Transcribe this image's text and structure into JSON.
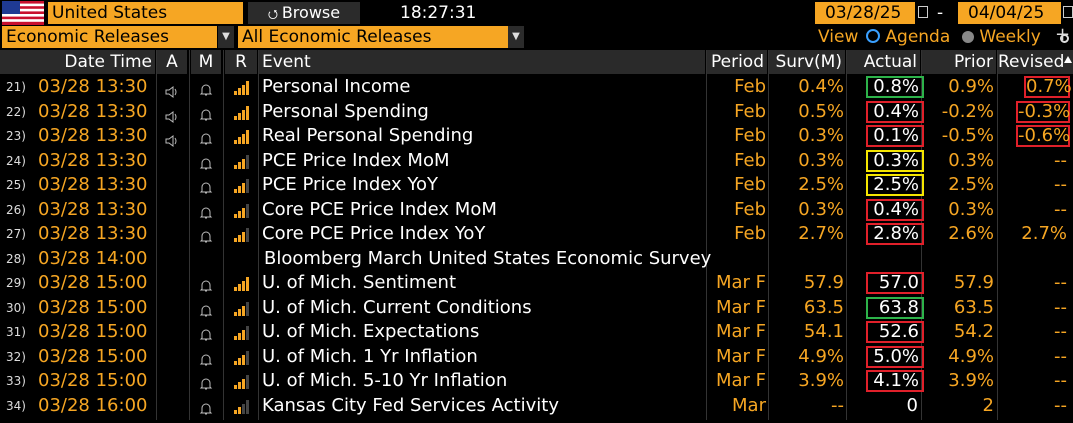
{
  "toolbar": {
    "country": "United States",
    "browse_label": "Browse",
    "time": "18:27:31",
    "date_from": "03/28/25",
    "date_to": "04/04/25",
    "date_separator": "-",
    "category": "Economic Releases",
    "filter": "All Economic Releases",
    "view_label": "View",
    "agenda_label": "Agenda",
    "weekly_label": "Weekly"
  },
  "columns": {
    "date_time": "Date Time",
    "a": "A",
    "m": "M",
    "r": "R",
    "event": "Event",
    "period": "Period",
    "survey": "Surv(M)",
    "actual": "Actual",
    "prior": "Prior",
    "revised": "Revised"
  },
  "colors": {
    "orange": "#f6a623",
    "green": "#2db34a",
    "red": "#e0202a",
    "yellow": "#f5e600"
  },
  "rows": [
    {
      "num": "21)",
      "dt": "03/28 13:30",
      "a": true,
      "m": true,
      "r": 4,
      "event": "Personal Income",
      "period": "Feb",
      "surv": "0.4%",
      "actual": "0.8%",
      "actual_box": "green",
      "prior": "0.9%",
      "revised": "0.7%",
      "revised_box": "red"
    },
    {
      "num": "22)",
      "dt": "03/28 13:30",
      "a": true,
      "m": true,
      "r": 4,
      "event": "Personal Spending",
      "period": "Feb",
      "surv": "0.5%",
      "actual": "0.4%",
      "actual_box": "red",
      "prior": "-0.2%",
      "revised": "-0.3%",
      "revised_box": "red"
    },
    {
      "num": "23)",
      "dt": "03/28 13:30",
      "a": true,
      "m": true,
      "r": 4,
      "event": "Real Personal Spending",
      "period": "Feb",
      "surv": "0.3%",
      "actual": "0.1%",
      "actual_box": "red",
      "prior": "-0.5%",
      "revised": "-0.6%",
      "revised_box": "red"
    },
    {
      "num": "24)",
      "dt": "03/28 13:30",
      "a": false,
      "m": true,
      "r": 3,
      "event": "PCE Price Index MoM",
      "period": "Feb",
      "surv": "0.3%",
      "actual": "0.3%",
      "actual_box": "yellow",
      "prior": "0.3%",
      "revised": "--",
      "revised_box": ""
    },
    {
      "num": "25)",
      "dt": "03/28 13:30",
      "a": false,
      "m": true,
      "r": 3,
      "event": "PCE Price Index YoY",
      "period": "Feb",
      "surv": "2.5%",
      "actual": "2.5%",
      "actual_box": "yellow",
      "prior": "2.5%",
      "revised": "--",
      "revised_box": ""
    },
    {
      "num": "26)",
      "dt": "03/28 13:30",
      "a": false,
      "m": true,
      "r": 3,
      "event": "Core PCE Price Index MoM",
      "period": "Feb",
      "surv": "0.3%",
      "actual": "0.4%",
      "actual_box": "red",
      "prior": "0.3%",
      "revised": "--",
      "revised_box": ""
    },
    {
      "num": "27)",
      "dt": "03/28 13:30",
      "a": false,
      "m": true,
      "r": 3,
      "event": "Core PCE Price Index YoY",
      "period": "Feb",
      "surv": "2.7%",
      "actual": "2.8%",
      "actual_box": "red",
      "prior": "2.6%",
      "revised": "2.7%",
      "revised_box": ""
    },
    {
      "num": "28)",
      "dt": "03/28 14:00",
      "a": false,
      "m": false,
      "r": 0,
      "event": "Bloomberg March United States Economic Survey",
      "period": "",
      "surv": "",
      "actual": "",
      "actual_box": "",
      "prior": "",
      "revised": "",
      "revised_box": "",
      "special": true
    },
    {
      "num": "29)",
      "dt": "03/28 15:00",
      "a": false,
      "m": true,
      "r": 4,
      "event": "U. of Mich. Sentiment",
      "period": "Mar F",
      "surv": "57.9",
      "actual": "57.0",
      "actual_box": "red",
      "prior": "57.9",
      "revised": "--",
      "revised_box": ""
    },
    {
      "num": "30)",
      "dt": "03/28 15:00",
      "a": false,
      "m": true,
      "r": 3,
      "event": "U. of Mich. Current Conditions",
      "period": "Mar F",
      "surv": "63.5",
      "actual": "63.8",
      "actual_box": "green",
      "prior": "63.5",
      "revised": "--",
      "revised_box": ""
    },
    {
      "num": "31)",
      "dt": "03/28 15:00",
      "a": false,
      "m": true,
      "r": 3,
      "event": "U. of Mich. Expectations",
      "period": "Mar F",
      "surv": "54.1",
      "actual": "52.6",
      "actual_box": "red",
      "prior": "54.2",
      "revised": "--",
      "revised_box": ""
    },
    {
      "num": "32)",
      "dt": "03/28 15:00",
      "a": false,
      "m": true,
      "r": 3,
      "event": "U. of Mich. 1 Yr Inflation",
      "period": "Mar F",
      "surv": "4.9%",
      "actual": "5.0%",
      "actual_box": "red",
      "prior": "4.9%",
      "revised": "--",
      "revised_box": ""
    },
    {
      "num": "33)",
      "dt": "03/28 15:00",
      "a": false,
      "m": true,
      "r": 3,
      "event": "U. of Mich. 5-10 Yr Inflation",
      "period": "Mar F",
      "surv": "3.9%",
      "actual": "4.1%",
      "actual_box": "red",
      "prior": "3.9%",
      "revised": "--",
      "revised_box": ""
    },
    {
      "num": "34)",
      "dt": "03/28 16:00",
      "a": false,
      "m": true,
      "r": 2,
      "event": "Kansas City Fed Services Activity",
      "period": "Mar",
      "surv": "--",
      "actual": "0",
      "actual_box": "",
      "prior": "2",
      "revised": "--",
      "revised_box": ""
    }
  ]
}
